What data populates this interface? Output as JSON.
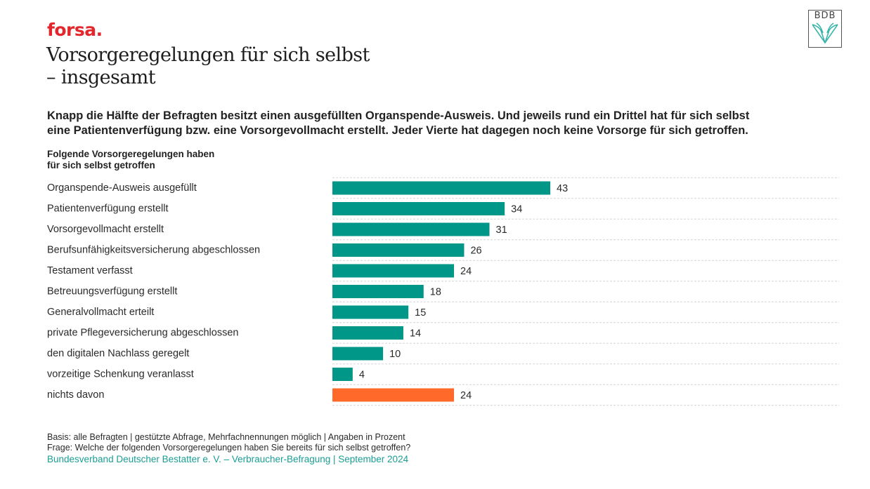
{
  "header": {
    "brand": "forsa.",
    "title_line1": "Vorsorgeregelungen für sich selbst",
    "title_line2": "– insgesamt",
    "logo_text": "BDB"
  },
  "lead": {
    "line1": "Knapp die Hälfte der Befragten besitzt einen ausgefüllten Organspende-Ausweis. Und jeweils rund ein Drittel hat für sich selbst",
    "line2": "eine Patientenverfügung bzw. eine Vorsorgevollmacht erstellt. Jeder Vierte hat dagegen noch keine Vorsorge für sich getroffen."
  },
  "colors": {
    "brand": "#e3262b",
    "bar_primary": "#009688",
    "bar_highlight": "#ff6a2b",
    "source": "#1a9e93",
    "gridline": "#d6d6d6",
    "logo_book": "#3bb5aa"
  },
  "chart_data": {
    "type": "bar",
    "orientation": "horizontal",
    "title": "Folgende Vorsorgeregelungen haben für sich selbst getroffen",
    "subtitle_line1": "Folgende Vorsorgeregelungen haben",
    "subtitle_line2": "für sich selbst getroffen",
    "xlabel": "",
    "ylabel": "",
    "unit": "Prozent",
    "xlim": [
      0,
      100
    ],
    "grid": "dashed horizontal separators between rows",
    "legend": "none",
    "categories": [
      "Organspende-Ausweis ausgefüllt",
      "Patientenverfügung erstellt",
      "Vorsorgevollmacht erstellt",
      "Berufsunfähigkeitsversicherung abgeschlossen",
      "Testament verfasst",
      "Betreuungsverfügung erstellt",
      "Generalvollmacht erteilt",
      "private Pflegeversicherung abgeschlossen",
      "den digitalen Nachlass geregelt",
      "vorzeitige Schenkung veranlasst",
      "nichts davon"
    ],
    "values": [
      43,
      34,
      31,
      26,
      24,
      18,
      15,
      14,
      10,
      4,
      24
    ],
    "highlight": [
      false,
      false,
      false,
      false,
      false,
      false,
      false,
      false,
      false,
      false,
      true
    ]
  },
  "footer": {
    "basis": "Basis: alle Befragten | gestützte Abfrage, Mehrfachnennungen möglich | Angaben in Prozent",
    "question": "Frage: Welche der folgenden Vorsorgeregelungen haben Sie bereits für sich selbst getroffen?",
    "source": "Bundesverband Deutscher Bestatter e. V. – Verbraucher-Befragung | September 2024"
  }
}
